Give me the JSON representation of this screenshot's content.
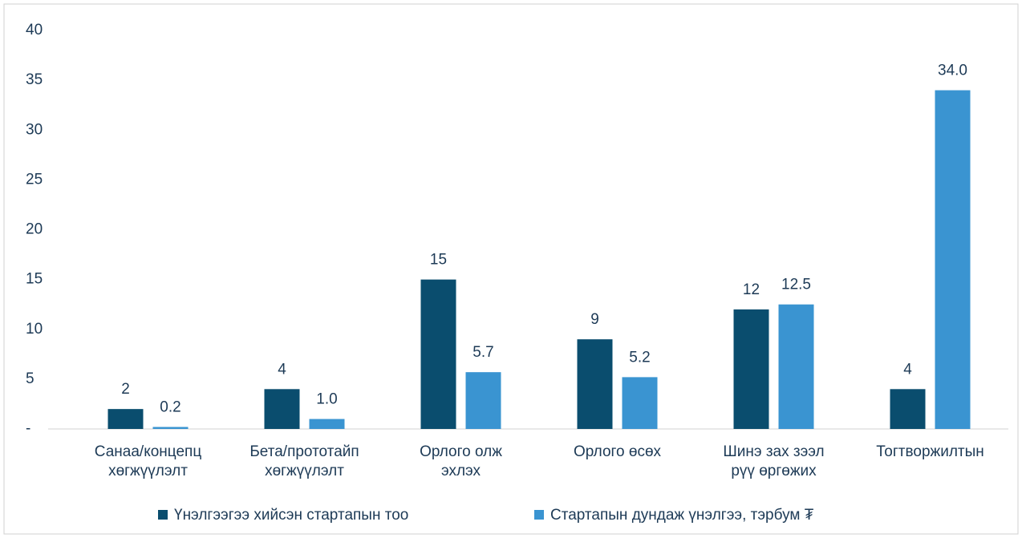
{
  "chart_data": {
    "type": "bar",
    "categories": [
      "Санаа/концепц\nхөгжүүлэлт",
      "Бета/прототайп\nхөгжүүлэлт",
      "Орлого олж\nэхлэх",
      "Орлого өсөх",
      "Шинэ зах зээл\nрүү өргөжих",
      "Тогтворжилтын"
    ],
    "series": [
      {
        "name": "Үнэлгээгээ хийсэн стартапын тоо",
        "color": "#0a4d6e",
        "values": [
          2,
          4,
          15,
          9,
          12,
          4
        ]
      },
      {
        "name": "Стартапын дундаж үнэлгээ, тэрбум ₮",
        "color": "#3a94d1",
        "values": [
          0.2,
          1.0,
          5.7,
          5.2,
          12.5,
          34.0
        ],
        "value_labels": [
          "0.2",
          "1.0",
          "5.7",
          "5.2",
          "12.5",
          "34.0"
        ]
      }
    ],
    "ylim": [
      0,
      40
    ],
    "yticks": [
      {
        "value": 0,
        "label": "-"
      },
      5,
      10,
      15,
      20,
      25,
      30,
      35,
      40
    ],
    "legend": "bottom"
  }
}
